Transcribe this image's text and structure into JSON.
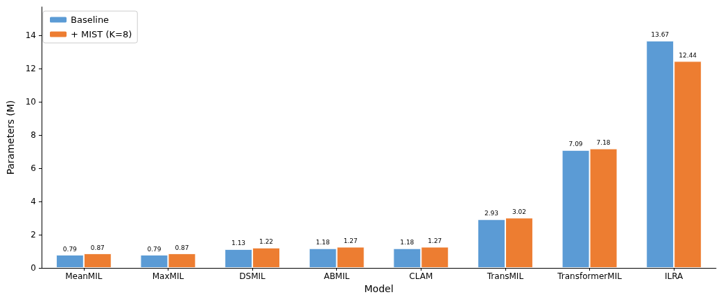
{
  "chart_data": {
    "type": "bar",
    "xlabel": "Model",
    "ylabel": "Parameters (M)",
    "categories": [
      "MeanMIL",
      "MaxMIL",
      "DSMIL",
      "ABMIL",
      "CLAM",
      "TransMIL",
      "TransformerMIL",
      "ILRA"
    ],
    "series": [
      {
        "name": "Baseline",
        "color": "#5b9bd5",
        "values": [
          0.79,
          0.79,
          1.13,
          1.18,
          1.18,
          2.93,
          7.09,
          13.67
        ]
      },
      {
        "name": "+ MIST (K=8)",
        "color": "#ed7d31",
        "values": [
          0.87,
          0.87,
          1.22,
          1.27,
          1.27,
          3.02,
          7.18,
          12.44
        ]
      }
    ],
    "ylim": [
      0,
      15.7
    ],
    "yticks": [
      0,
      2,
      4,
      6,
      8,
      10,
      12,
      14
    ],
    "grid": false,
    "legend": "top left",
    "data_labels": true
  }
}
